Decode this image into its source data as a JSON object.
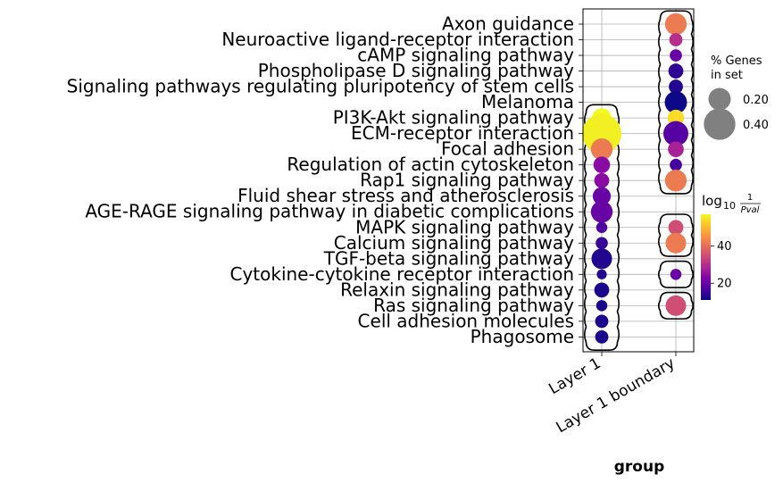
{
  "chart_data": {
    "type": "scatter",
    "title": "",
    "xlabel": "group",
    "ylabel": "",
    "grid": true,
    "x_categories": [
      "Layer 1",
      "Layer 1 boundary"
    ],
    "y_categories": [
      "Axon guidance",
      "Neuroactive ligand-receptor interaction",
      "cAMP signaling pathway",
      "Phospholipase D signaling pathway",
      "Signaling pathways regulating pluripotency of stem cells",
      "Melanoma",
      "PI3K-Akt signaling pathway",
      "ECM-receptor interaction",
      "Focal adhesion",
      "Regulation of actin cytoskeleton",
      "Rap1 signaling pathway",
      "Fluid shear stress and atherosclerosis",
      "AGE-RAGE signaling pathway in diabetic complications",
      "MAPK signaling pathway",
      "Calcium signaling pathway",
      "TGF-beta signaling pathway",
      "Cytokine-cytokine receptor interaction",
      "Relaxin signaling pathway",
      "Ras signaling pathway",
      "Cell adhesion molecules",
      "Phagosome"
    ],
    "size_legend": {
      "title_lines": [
        "% Genes",
        "in set"
      ],
      "entries": [
        {
          "label": "0.20",
          "value": 0.2
        },
        {
          "label": "0.40",
          "value": 0.4
        }
      ]
    },
    "color_legend": {
      "title_main": "log",
      "title_sub": "10",
      "title_num": "1",
      "title_den": "Pval",
      "colormap": "plasma",
      "range": [
        11,
        57
      ],
      "ticks": [
        {
          "label": "20",
          "value": 20
        },
        {
          "label": "40",
          "value": 40
        }
      ]
    },
    "points": [
      {
        "x": "Layer 1",
        "y": "PI3K-Akt signaling pathway",
        "size": 0.15,
        "color": 57
      },
      {
        "x": "Layer 1",
        "y": "ECM-receptor interaction",
        "size": 0.62,
        "color": 56
      },
      {
        "x": "Layer 1",
        "y": "Focal adhesion",
        "size": 0.19,
        "color": 42
      },
      {
        "x": "Layer 1",
        "y": "Regulation of actin cytoskeleton",
        "size": 0.11,
        "color": 24
      },
      {
        "x": "Layer 1",
        "y": "Rap1 signaling pathway",
        "size": 0.09,
        "color": 24
      },
      {
        "x": "Layer 1",
        "y": "Fluid shear stress and atherosclerosis",
        "size": 0.13,
        "color": 20
      },
      {
        "x": "Layer 1",
        "y": "AGE-RAGE signaling pathway in diabetic complications",
        "size": 0.19,
        "color": 20
      },
      {
        "x": "Layer 1",
        "y": "MAPK signaling pathway",
        "size": 0.05,
        "color": 17
      },
      {
        "x": "Layer 1",
        "y": "Calcium signaling pathway",
        "size": 0.06,
        "color": 15
      },
      {
        "x": "Layer 1",
        "y": "TGF-beta signaling pathway",
        "size": 0.17,
        "color": 13
      },
      {
        "x": "Layer 1",
        "y": "Cytokine-cytokine receptor interaction",
        "size": 0.04,
        "color": 13
      },
      {
        "x": "Layer 1",
        "y": "Relaxin signaling pathway",
        "size": 0.09,
        "color": 12
      },
      {
        "x": "Layer 1",
        "y": "Ras signaling pathway",
        "size": 0.05,
        "color": 12
      },
      {
        "x": "Layer 1",
        "y": "Cell adhesion molecules",
        "size": 0.07,
        "color": 12
      },
      {
        "x": "Layer 1",
        "y": "Phagosome",
        "size": 0.07,
        "color": 12
      },
      {
        "x": "Layer 1 boundary",
        "y": "Axon guidance",
        "size": 0.19,
        "color": 42
      },
      {
        "x": "Layer 1 boundary",
        "y": "Neuroactive ligand-receptor interaction",
        "size": 0.07,
        "color": 30
      },
      {
        "x": "Layer 1 boundary",
        "y": "cAMP signaling pathway",
        "size": 0.06,
        "color": 20
      },
      {
        "x": "Layer 1 boundary",
        "y": "Phospholipase D signaling pathway",
        "size": 0.09,
        "color": 14
      },
      {
        "x": "Layer 1 boundary",
        "y": "Signaling pathways regulating pluripotency of stem cells",
        "size": 0.08,
        "color": 13
      },
      {
        "x": "Layer 1 boundary",
        "y": "Melanoma",
        "size": 0.2,
        "color": 11
      },
      {
        "x": "Layer 1 boundary",
        "y": "PI3K-Akt signaling pathway",
        "size": 0.11,
        "color": 54
      },
      {
        "x": "Layer 1 boundary",
        "y": "ECM-receptor interaction",
        "size": 0.25,
        "color": 18
      },
      {
        "x": "Layer 1 boundary",
        "y": "Focal adhesion",
        "size": 0.1,
        "color": 28
      },
      {
        "x": "Layer 1 boundary",
        "y": "Regulation of actin cytoskeleton",
        "size": 0.06,
        "color": 16
      },
      {
        "x": "Layer 1 boundary",
        "y": "Rap1 signaling pathway",
        "size": 0.19,
        "color": 42
      },
      {
        "x": "Layer 1 boundary",
        "y": "MAPK signaling pathway",
        "size": 0.09,
        "color": 35
      },
      {
        "x": "Layer 1 boundary",
        "y": "Calcium signaling pathway",
        "size": 0.17,
        "color": 42
      },
      {
        "x": "Layer 1 boundary",
        "y": "Cytokine-cytokine receptor interaction",
        "size": 0.05,
        "color": 20
      },
      {
        "x": "Layer 1 boundary",
        "y": "Ras signaling pathway",
        "size": 0.17,
        "color": 35
      }
    ],
    "outline_groups": [
      {
        "x": "Layer 1",
        "from": "PI3K-Akt signaling pathway",
        "to": "Phagosome"
      },
      {
        "x": "Layer 1 boundary",
        "from": "Axon guidance",
        "to": "Rap1 signaling pathway"
      },
      {
        "x": "Layer 1 boundary",
        "from": "MAPK signaling pathway",
        "to": "Calcium signaling pathway"
      },
      {
        "x": "Layer 1 boundary",
        "from": "Cytokine-cytokine receptor interaction",
        "to": "Cytokine-cytokine receptor interaction"
      },
      {
        "x": "Layer 1 boundary",
        "from": "Ras signaling pathway",
        "to": "Ras signaling pathway"
      }
    ]
  }
}
